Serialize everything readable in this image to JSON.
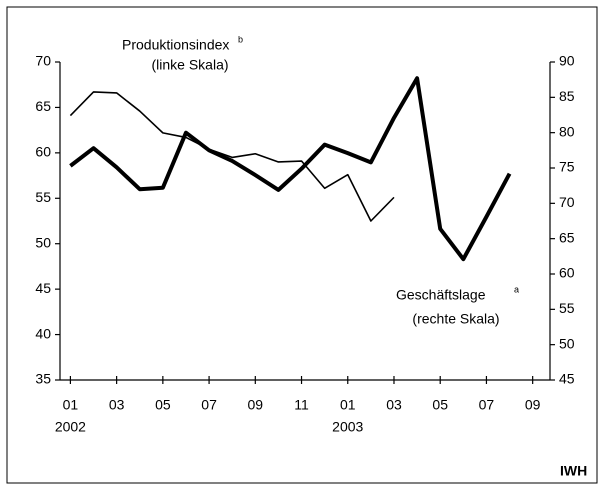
{
  "chart_data": {
    "type": "line",
    "annotations": {
      "prod": "Produktionsindex",
      "prod_sup": "b",
      "prod_scale": "(linke Skala)",
      "ges": "Geschäftslage",
      "ges_sup": "a",
      "ges_scale": "(rechte Skala)",
      "source": "IWH"
    },
    "series": [
      {
        "name": "Produktionsindex",
        "color": "#000000",
        "axis": "y",
        "x": [
          0,
          1,
          2,
          3,
          4,
          5,
          6,
          7,
          8,
          9,
          10,
          11,
          12,
          13,
          14
        ],
        "values": [
          64.1,
          66.7,
          66.6,
          64.6,
          62.2,
          61.7,
          60.4,
          59.5,
          59.9,
          59.0,
          59.1,
          56.1,
          57.6,
          52.5,
          55.1
        ]
      },
      {
        "name": "Geschäftslage",
        "color": "#000000",
        "axis": "y2",
        "x": [
          0,
          1,
          2,
          3,
          4,
          5,
          6,
          7,
          8,
          9,
          10,
          11,
          12,
          13,
          14,
          15,
          16,
          17,
          18,
          19
        ],
        "values": [
          75.3,
          77.8,
          75.1,
          72.0,
          72.2,
          80.0,
          77.5,
          76.0,
          74.0,
          71.9,
          74.9,
          78.3,
          77.1,
          75.8,
          82.1,
          87.7,
          66.4,
          62.1,
          68.1,
          74.2
        ]
      }
    ],
    "xlim": [
      -0.45,
      20.75
    ],
    "xticks": [
      {
        "value": 0,
        "label": "01"
      },
      {
        "value": 2,
        "label": "03"
      },
      {
        "value": 4,
        "label": "05"
      },
      {
        "value": 6,
        "label": "07"
      },
      {
        "value": 8,
        "label": "09"
      },
      {
        "value": 10,
        "label": "11"
      },
      {
        "value": 12,
        "label": "01"
      },
      {
        "value": 14,
        "label": "03"
      },
      {
        "value": 16,
        "label": "05"
      },
      {
        "value": 18,
        "label": "07"
      },
      {
        "value": 20,
        "label": "09"
      }
    ],
    "year_labels": [
      {
        "value": 0,
        "label": "2002"
      },
      {
        "value": 12,
        "label": "2003"
      }
    ],
    "ylim": [
      35,
      70
    ],
    "yticks": [
      35,
      40,
      45,
      50,
      55,
      60,
      65,
      70
    ],
    "y2lim": [
      45,
      90
    ],
    "y2ticks": [
      45,
      50,
      55,
      60,
      65,
      70,
      75,
      80,
      85,
      90
    ]
  }
}
